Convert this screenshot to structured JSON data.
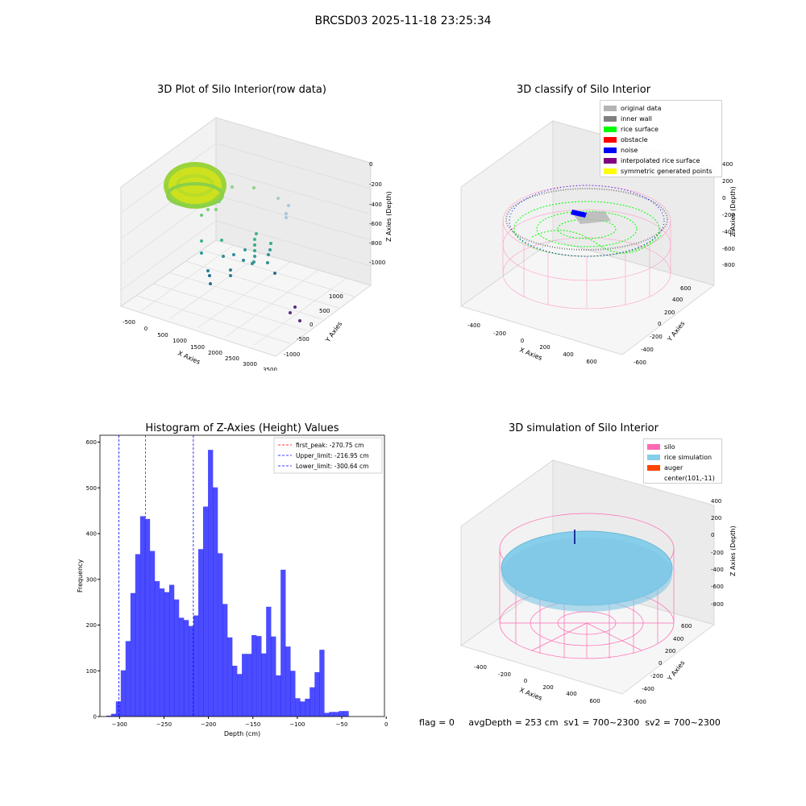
{
  "suptitle": "BRCSD03 2025-11-18 23:25:34",
  "plots": {
    "raw": {
      "title": "3D Plot of Silo Interior(row data)",
      "xlabel": "X Axies",
      "ylabel": "Y Axies",
      "zlabel": "Z Axies (Depth)",
      "xticks": [
        "-500",
        "0",
        "500",
        "1000",
        "1500",
        "2000",
        "2500",
        "3000",
        "3500"
      ],
      "yticks": [
        "1000",
        "500",
        "0",
        "-500",
        "-1000"
      ],
      "zticks": [
        "0",
        "-200",
        "-400",
        "-600",
        "-800",
        "-1000"
      ]
    },
    "classify": {
      "title": "3D classify of Silo Interior",
      "xlabel": "X Axies",
      "ylabel": "Y Axies",
      "zlabel": "Z Axies (Depth)",
      "xticks": [
        "-400",
        "-200",
        "0",
        "200",
        "400",
        "600"
      ],
      "yticks": [
        "600",
        "400",
        "200",
        "0",
        "-200",
        "-400",
        "-600"
      ],
      "zticks": [
        "400",
        "200",
        "0",
        "-200",
        "-400",
        "-600",
        "-800"
      ],
      "legend": [
        {
          "label": "original data",
          "color": "#b4b4b4"
        },
        {
          "label": "inner wall",
          "color": "#808080"
        },
        {
          "label": "rice surface",
          "color": "#00ff00"
        },
        {
          "label": "obstacle",
          "color": "#ff0000"
        },
        {
          "label": "noise",
          "color": "#0000ff"
        },
        {
          "label": "interpolated rice surface",
          "color": "#800080"
        },
        {
          "label": "symmetric generated points",
          "color": "#ffff00"
        }
      ]
    },
    "simulation": {
      "title": "3D simulation of Silo Interior",
      "xlabel": "X Axies",
      "ylabel": "Y Axies",
      "zlabel": "Z Axies (Depth)",
      "xticks": [
        "-400",
        "-200",
        "0",
        "200",
        "400",
        "600"
      ],
      "yticks": [
        "600",
        "400",
        "200",
        "0",
        "-200",
        "-400",
        "-600"
      ],
      "zticks": [
        "400",
        "200",
        "0",
        "-200",
        "-400",
        "-600",
        "-800"
      ],
      "legend": [
        {
          "label": "silo",
          "color": "#ff69b4"
        },
        {
          "label": "rice simulation",
          "color": "#87ceeb"
        },
        {
          "label": "auger",
          "color": "#ff4500"
        },
        {
          "label": "center(101,-11)",
          "color": ""
        }
      ]
    }
  },
  "chart_data": {
    "type": "bar",
    "title": "Histogram of Z-Axies (Height) Values",
    "xlabel": "Depth (cm)",
    "ylabel": "Frequency",
    "xlim": [
      -322,
      -2
    ],
    "ylim": [
      0,
      615
    ],
    "xticks": [
      -300,
      -250,
      -200,
      -150,
      -100,
      -50,
      0
    ],
    "yticks": [
      0,
      100,
      200,
      300,
      400,
      500,
      600
    ],
    "bin_width": 5.45,
    "bins": [
      [
        -315,
        2
      ],
      [
        -309.5,
        6
      ],
      [
        -304.1,
        33
      ],
      [
        -298.6,
        101
      ],
      [
        -293.2,
        165
      ],
      [
        -287.7,
        270
      ],
      [
        -282.3,
        355
      ],
      [
        -276.8,
        438
      ],
      [
        -271.4,
        432
      ],
      [
        -265.9,
        362
      ],
      [
        -260.5,
        296
      ],
      [
        -255,
        280
      ],
      [
        -249.6,
        272
      ],
      [
        -244.1,
        288
      ],
      [
        -238.7,
        256
      ],
      [
        -233.2,
        216
      ],
      [
        -227.8,
        211
      ],
      [
        -222.3,
        198
      ],
      [
        -216.9,
        221
      ],
      [
        -211.4,
        366
      ],
      [
        -206,
        459
      ],
      [
        -200.5,
        583
      ],
      [
        -195.1,
        501
      ],
      [
        -189.6,
        357
      ],
      [
        -184.2,
        246
      ],
      [
        -178.7,
        173
      ],
      [
        -173.3,
        111
      ],
      [
        -167.8,
        93
      ],
      [
        -162.4,
        137
      ],
      [
        -156.9,
        137
      ],
      [
        -151.5,
        178
      ],
      [
        -146,
        176
      ],
      [
        -140.6,
        138
      ],
      [
        -135.1,
        240
      ],
      [
        -129.7,
        175
      ],
      [
        -124.2,
        90
      ],
      [
        -118.8,
        321
      ],
      [
        -113.3,
        153
      ],
      [
        -107.9,
        100
      ],
      [
        -102.4,
        40
      ],
      [
        -97,
        33
      ],
      [
        -91.5,
        39
      ],
      [
        -86.1,
        64
      ],
      [
        -80.6,
        97
      ],
      [
        -75.2,
        146
      ],
      [
        -69.7,
        8
      ],
      [
        -64.3,
        10
      ],
      [
        -58.8,
        10
      ],
      [
        -53.4,
        12
      ],
      [
        -47.9,
        12
      ]
    ],
    "vlines": [
      {
        "label": "first_peak: -270.75 cm",
        "x": -270.75,
        "color": "#ff0000"
      },
      {
        "label": "Upper_limit: -216.95 cm",
        "x": -216.95,
        "color": "#0000ff"
      },
      {
        "label": "Lower_limit: -300.64 cm",
        "x": -300.64,
        "color": "#0000ff"
      }
    ],
    "bar_color": "#0000ff"
  },
  "footer": "flag = 0     avgDepth = 253 cm  sv1 = 700~2300  sv2 = 700~2300"
}
